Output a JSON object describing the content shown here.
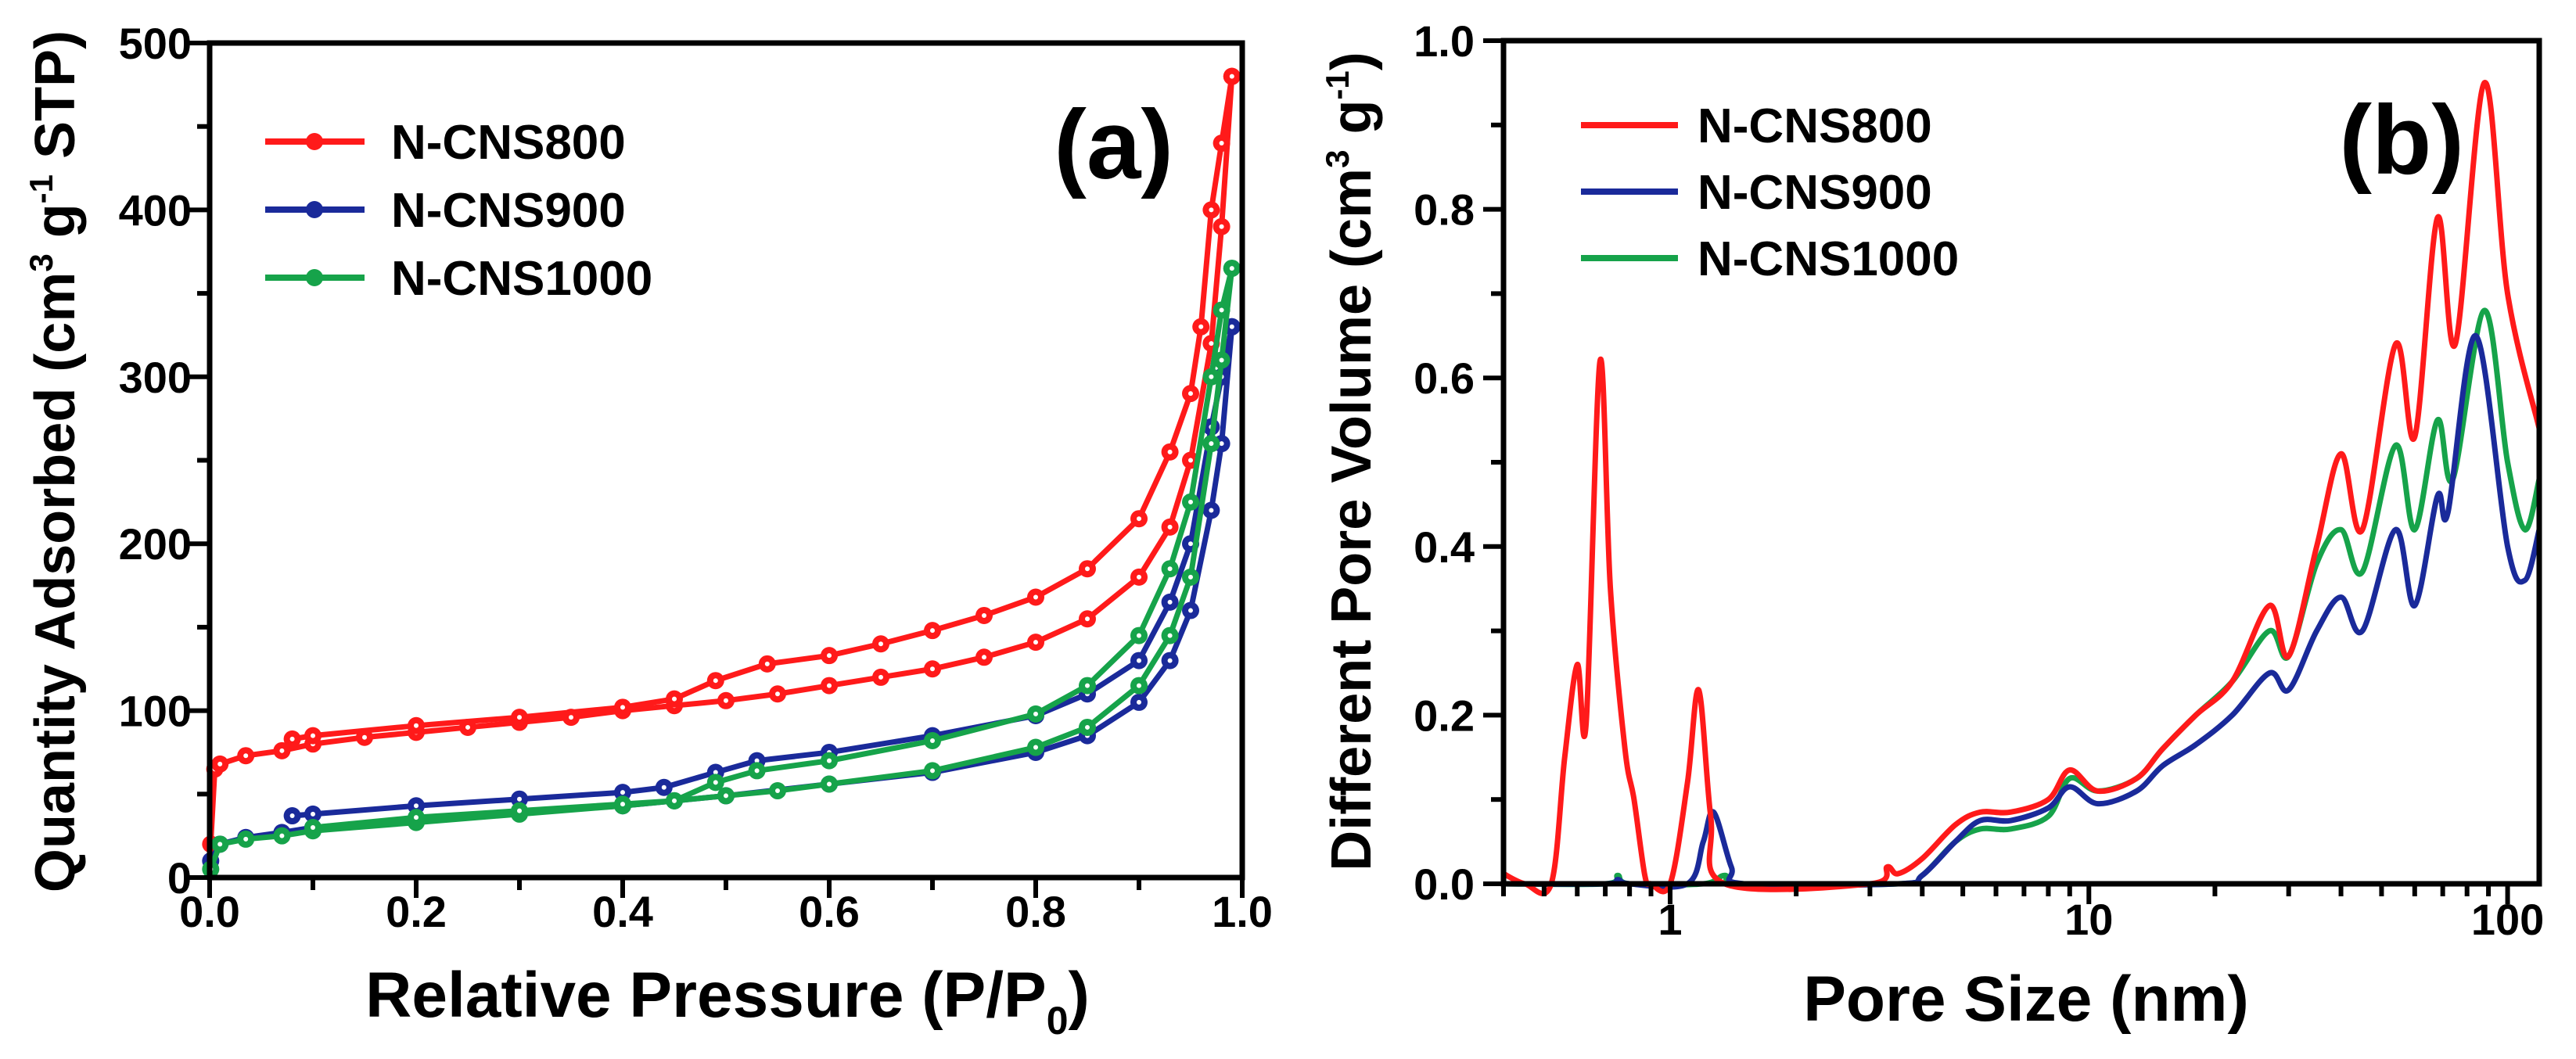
{
  "chart_data": [
    {
      "type": "line",
      "panel_label": "(a)",
      "xlabel": "Relative Pressure (P/P",
      "xlabel_sub": "0",
      "xlabel_end": ")",
      "ylabel": "Quantity Adsorbed (cm",
      "ylabel_sup1": "3",
      "ylabel_mid": " g",
      "ylabel_sup2": "-1",
      "ylabel_end": " STP)",
      "xlim": [
        0,
        1.0
      ],
      "ylim": [
        0,
        500
      ],
      "xticks": [
        "0.0",
        "0.2",
        "0.4",
        "0.6",
        "0.8",
        "1.0"
      ],
      "yticks": [
        "0",
        "100",
        "200",
        "300",
        "400",
        "500"
      ],
      "legend_position": "top-left",
      "series": [
        {
          "name": "N-CNS800",
          "color": "#ff1a1a",
          "adsorption": [
            [
              0.001,
              20
            ],
            [
              0.005,
              65
            ],
            [
              0.01,
              68
            ],
            [
              0.035,
              73
            ],
            [
              0.07,
              76
            ],
            [
              0.1,
              80
            ],
            [
              0.15,
              84
            ],
            [
              0.2,
              87
            ],
            [
              0.25,
              90
            ],
            [
              0.3,
              93
            ],
            [
              0.35,
              96
            ],
            [
              0.4,
              100
            ],
            [
              0.45,
              103
            ],
            [
              0.5,
              106
            ],
            [
              0.55,
              110
            ],
            [
              0.6,
              115
            ],
            [
              0.65,
              120
            ],
            [
              0.7,
              125
            ],
            [
              0.75,
              132
            ],
            [
              0.8,
              141
            ],
            [
              0.85,
              155
            ],
            [
              0.9,
              180
            ],
            [
              0.93,
              210
            ],
            [
              0.95,
              250
            ],
            [
              0.97,
              320
            ],
            [
              0.98,
              390
            ],
            [
              0.99,
              480
            ]
          ],
          "desorption": [
            [
              0.99,
              480
            ],
            [
              0.98,
              440
            ],
            [
              0.97,
              400
            ],
            [
              0.96,
              330
            ],
            [
              0.95,
              290
            ],
            [
              0.93,
              255
            ],
            [
              0.9,
              215
            ],
            [
              0.85,
              185
            ],
            [
              0.8,
              168
            ],
            [
              0.75,
              157
            ],
            [
              0.7,
              148
            ],
            [
              0.65,
              140
            ],
            [
              0.6,
              133
            ],
            [
              0.54,
              128
            ],
            [
              0.49,
              118
            ],
            [
              0.45,
              107
            ],
            [
              0.4,
              102
            ],
            [
              0.3,
              96
            ],
            [
              0.2,
              91
            ],
            [
              0.1,
              85
            ],
            [
              0.08,
              83
            ]
          ]
        },
        {
          "name": "N-CNS900",
          "color": "#1a2a9a",
          "adsorption": [
            [
              0.001,
              10
            ],
            [
              0.01,
              20
            ],
            [
              0.035,
              24
            ],
            [
              0.07,
              27
            ],
            [
              0.1,
              30
            ],
            [
              0.2,
              35
            ],
            [
              0.3,
              39
            ],
            [
              0.4,
              43
            ],
            [
              0.45,
              46
            ],
            [
              0.5,
              49
            ],
            [
              0.6,
              56
            ],
            [
              0.7,
              63
            ],
            [
              0.8,
              75
            ],
            [
              0.85,
              85
            ],
            [
              0.9,
              105
            ],
            [
              0.93,
              130
            ],
            [
              0.95,
              160
            ],
            [
              0.97,
              220
            ],
            [
              0.98,
              260
            ],
            [
              0.99,
              330
            ]
          ],
          "desorption": [
            [
              0.99,
              330
            ],
            [
              0.98,
              300
            ],
            [
              0.97,
              270
            ],
            [
              0.95,
              200
            ],
            [
              0.93,
              165
            ],
            [
              0.9,
              130
            ],
            [
              0.85,
              110
            ],
            [
              0.8,
              97
            ],
            [
              0.7,
              85
            ],
            [
              0.6,
              75
            ],
            [
              0.53,
              70
            ],
            [
              0.49,
              63
            ],
            [
              0.44,
              54
            ],
            [
              0.4,
              51
            ],
            [
              0.3,
              47
            ],
            [
              0.2,
              43
            ],
            [
              0.1,
              38
            ],
            [
              0.08,
              37
            ]
          ]
        },
        {
          "name": "N-CNS1000",
          "color": "#16a34a",
          "adsorption": [
            [
              0.001,
              5
            ],
            [
              0.01,
              20
            ],
            [
              0.035,
              23
            ],
            [
              0.07,
              25
            ],
            [
              0.1,
              28
            ],
            [
              0.2,
              33
            ],
            [
              0.3,
              38
            ],
            [
              0.4,
              43
            ],
            [
              0.45,
              46
            ],
            [
              0.5,
              49
            ],
            [
              0.55,
              52
            ],
            [
              0.6,
              56
            ],
            [
              0.7,
              64
            ],
            [
              0.8,
              78
            ],
            [
              0.85,
              90
            ],
            [
              0.9,
              115
            ],
            [
              0.93,
              145
            ],
            [
              0.95,
              180
            ],
            [
              0.97,
              260
            ],
            [
              0.98,
              310
            ],
            [
              0.99,
              365
            ]
          ],
          "desorption": [
            [
              0.99,
              365
            ],
            [
              0.98,
              340
            ],
            [
              0.97,
              300
            ],
            [
              0.95,
              225
            ],
            [
              0.93,
              185
            ],
            [
              0.9,
              145
            ],
            [
              0.85,
              115
            ],
            [
              0.8,
              98
            ],
            [
              0.7,
              82
            ],
            [
              0.6,
              70
            ],
            [
              0.53,
              64
            ],
            [
              0.49,
              57
            ],
            [
              0.45,
              46
            ],
            [
              0.4,
              44
            ],
            [
              0.3,
              40
            ],
            [
              0.2,
              36
            ],
            [
              0.1,
              30
            ]
          ]
        }
      ]
    },
    {
      "type": "line",
      "panel_label": "(b)",
      "xlabel": "Pore Size (nm)",
      "ylabel": "Different Pore Volume (cm",
      "ylabel_sup1": "3",
      "ylabel_mid": " g",
      "ylabel_sup2": "-1",
      "ylabel_end": ")",
      "xscale": "log",
      "xlim": [
        0.4,
        119
      ],
      "ylim": [
        0,
        1.0
      ],
      "xticks": [
        "1",
        "10",
        "100"
      ],
      "yticks": [
        "0.0",
        "0.2",
        "0.4",
        "0.6",
        "0.8",
        "1.0"
      ],
      "legend_position": "top-left",
      "series": [
        {
          "name": "N-CNS800",
          "color": "#ff1a1a",
          "points": [
            [
              0.4,
              0.012
            ],
            [
              0.45,
              0.0
            ],
            [
              0.52,
              0.0
            ],
            [
              0.56,
              0.15
            ],
            [
              0.6,
              0.26
            ],
            [
              0.63,
              0.19
            ],
            [
              0.68,
              0.62
            ],
            [
              0.72,
              0.35
            ],
            [
              0.78,
              0.16
            ],
            [
              0.82,
              0.1
            ],
            [
              0.87,
              0.01
            ],
            [
              0.9,
              0
            ],
            [
              1.0,
              0
            ],
            [
              1.1,
              0.12
            ],
            [
              1.17,
              0.23
            ],
            [
              1.25,
              0.08
            ],
            [
              1.35,
              0
            ],
            [
              3.0,
              0
            ],
            [
              3.3,
              0.02
            ],
            [
              3.5,
              0.012
            ],
            [
              4,
              0.03
            ],
            [
              4.8,
              0.07
            ],
            [
              5.5,
              0.085
            ],
            [
              6.5,
              0.085
            ],
            [
              8,
              0.1
            ],
            [
              9,
              0.135
            ],
            [
              10.5,
              0.11
            ],
            [
              13,
              0.125
            ],
            [
              15,
              0.16
            ],
            [
              18,
              0.2
            ],
            [
              22,
              0.24
            ],
            [
              27,
              0.33
            ],
            [
              30,
              0.27
            ],
            [
              35,
              0.4
            ],
            [
              40,
              0.51
            ],
            [
              45,
              0.42
            ],
            [
              54,
              0.64
            ],
            [
              60,
              0.53
            ],
            [
              68,
              0.79
            ],
            [
              75,
              0.64
            ],
            [
              88,
              0.95
            ],
            [
              100,
              0.7
            ],
            [
              119,
              0.54
            ]
          ]
        },
        {
          "name": "N-CNS900",
          "color": "#1a2a9a",
          "points": [
            [
              0.4,
              0
            ],
            [
              0.7,
              0
            ],
            [
              0.75,
              0.005
            ],
            [
              0.8,
              0
            ],
            [
              1.1,
              0
            ],
            [
              1.2,
              0.05
            ],
            [
              1.27,
              0.085
            ],
            [
              1.4,
              0.02
            ],
            [
              1.5,
              0
            ],
            [
              3.5,
              0
            ],
            [
              4,
              0.01
            ],
            [
              4.8,
              0.05
            ],
            [
              5.5,
              0.075
            ],
            [
              6.5,
              0.075
            ],
            [
              8,
              0.09
            ],
            [
              9,
              0.115
            ],
            [
              10.5,
              0.095
            ],
            [
              13,
              0.11
            ],
            [
              15,
              0.14
            ],
            [
              18,
              0.165
            ],
            [
              22,
              0.2
            ],
            [
              27,
              0.25
            ],
            [
              30,
              0.23
            ],
            [
              35,
              0.3
            ],
            [
              40,
              0.34
            ],
            [
              45,
              0.3
            ],
            [
              54,
              0.42
            ],
            [
              60,
              0.33
            ],
            [
              68,
              0.46
            ],
            [
              72,
              0.44
            ],
            [
              84,
              0.65
            ],
            [
              100,
              0.4
            ],
            [
              110,
              0.36
            ],
            [
              119,
              0.42
            ]
          ]
        },
        {
          "name": "N-CNS1000",
          "color": "#16a34a",
          "points": [
            [
              0.4,
              0
            ],
            [
              0.7,
              0
            ],
            [
              0.75,
              0.01
            ],
            [
              0.8,
              0
            ],
            [
              1.2,
              0
            ],
            [
              1.35,
              0.01
            ],
            [
              1.5,
              0
            ],
            [
              3.5,
              0
            ],
            [
              4,
              0.01
            ],
            [
              4.8,
              0.05
            ],
            [
              5.5,
              0.065
            ],
            [
              6.5,
              0.065
            ],
            [
              8,
              0.08
            ],
            [
              9,
              0.125
            ],
            [
              10.5,
              0.11
            ],
            [
              13,
              0.125
            ],
            [
              15,
              0.16
            ],
            [
              18,
              0.2
            ],
            [
              22,
              0.24
            ],
            [
              27,
              0.3
            ],
            [
              30,
              0.27
            ],
            [
              35,
              0.38
            ],
            [
              40,
              0.42
            ],
            [
              45,
              0.37
            ],
            [
              54,
              0.52
            ],
            [
              60,
              0.42
            ],
            [
              68,
              0.55
            ],
            [
              74,
              0.48
            ],
            [
              88,
              0.68
            ],
            [
              100,
              0.5
            ],
            [
              110,
              0.42
            ],
            [
              119,
              0.48
            ]
          ]
        }
      ]
    }
  ]
}
